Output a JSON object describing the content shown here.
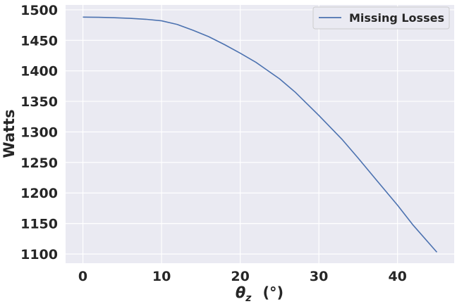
{
  "chart_data": {
    "type": "line",
    "title": "",
    "xlabel_symbol": "θ",
    "xlabel_subscript": "z",
    "xlabel_unit": "(°)",
    "ylabel": "Watts",
    "xlim": [
      -2.2,
      47.2
    ],
    "ylim": [
      1085,
      1508
    ],
    "xticks": [
      0,
      10,
      20,
      30,
      40
    ],
    "yticks": [
      1100,
      1150,
      1200,
      1250,
      1300,
      1350,
      1400,
      1450,
      1500
    ],
    "grid": true,
    "legend_position": "top-right",
    "background_color": "#eaeaf2",
    "series": [
      {
        "name": "Missing Losses",
        "color": "#4c72b0",
        "x": [
          0,
          2,
          4,
          6,
          8,
          10,
          12,
          14,
          16,
          18,
          20,
          22,
          25,
          27,
          30,
          33,
          35,
          37,
          40,
          42,
          45
        ],
        "y": [
          1488,
          1487.8,
          1487,
          1486,
          1484.5,
          1482,
          1476,
          1466.5,
          1456,
          1443,
          1429,
          1414,
          1387,
          1365,
          1327,
          1287,
          1257,
          1226,
          1180,
          1147,
          1103
        ]
      }
    ]
  }
}
